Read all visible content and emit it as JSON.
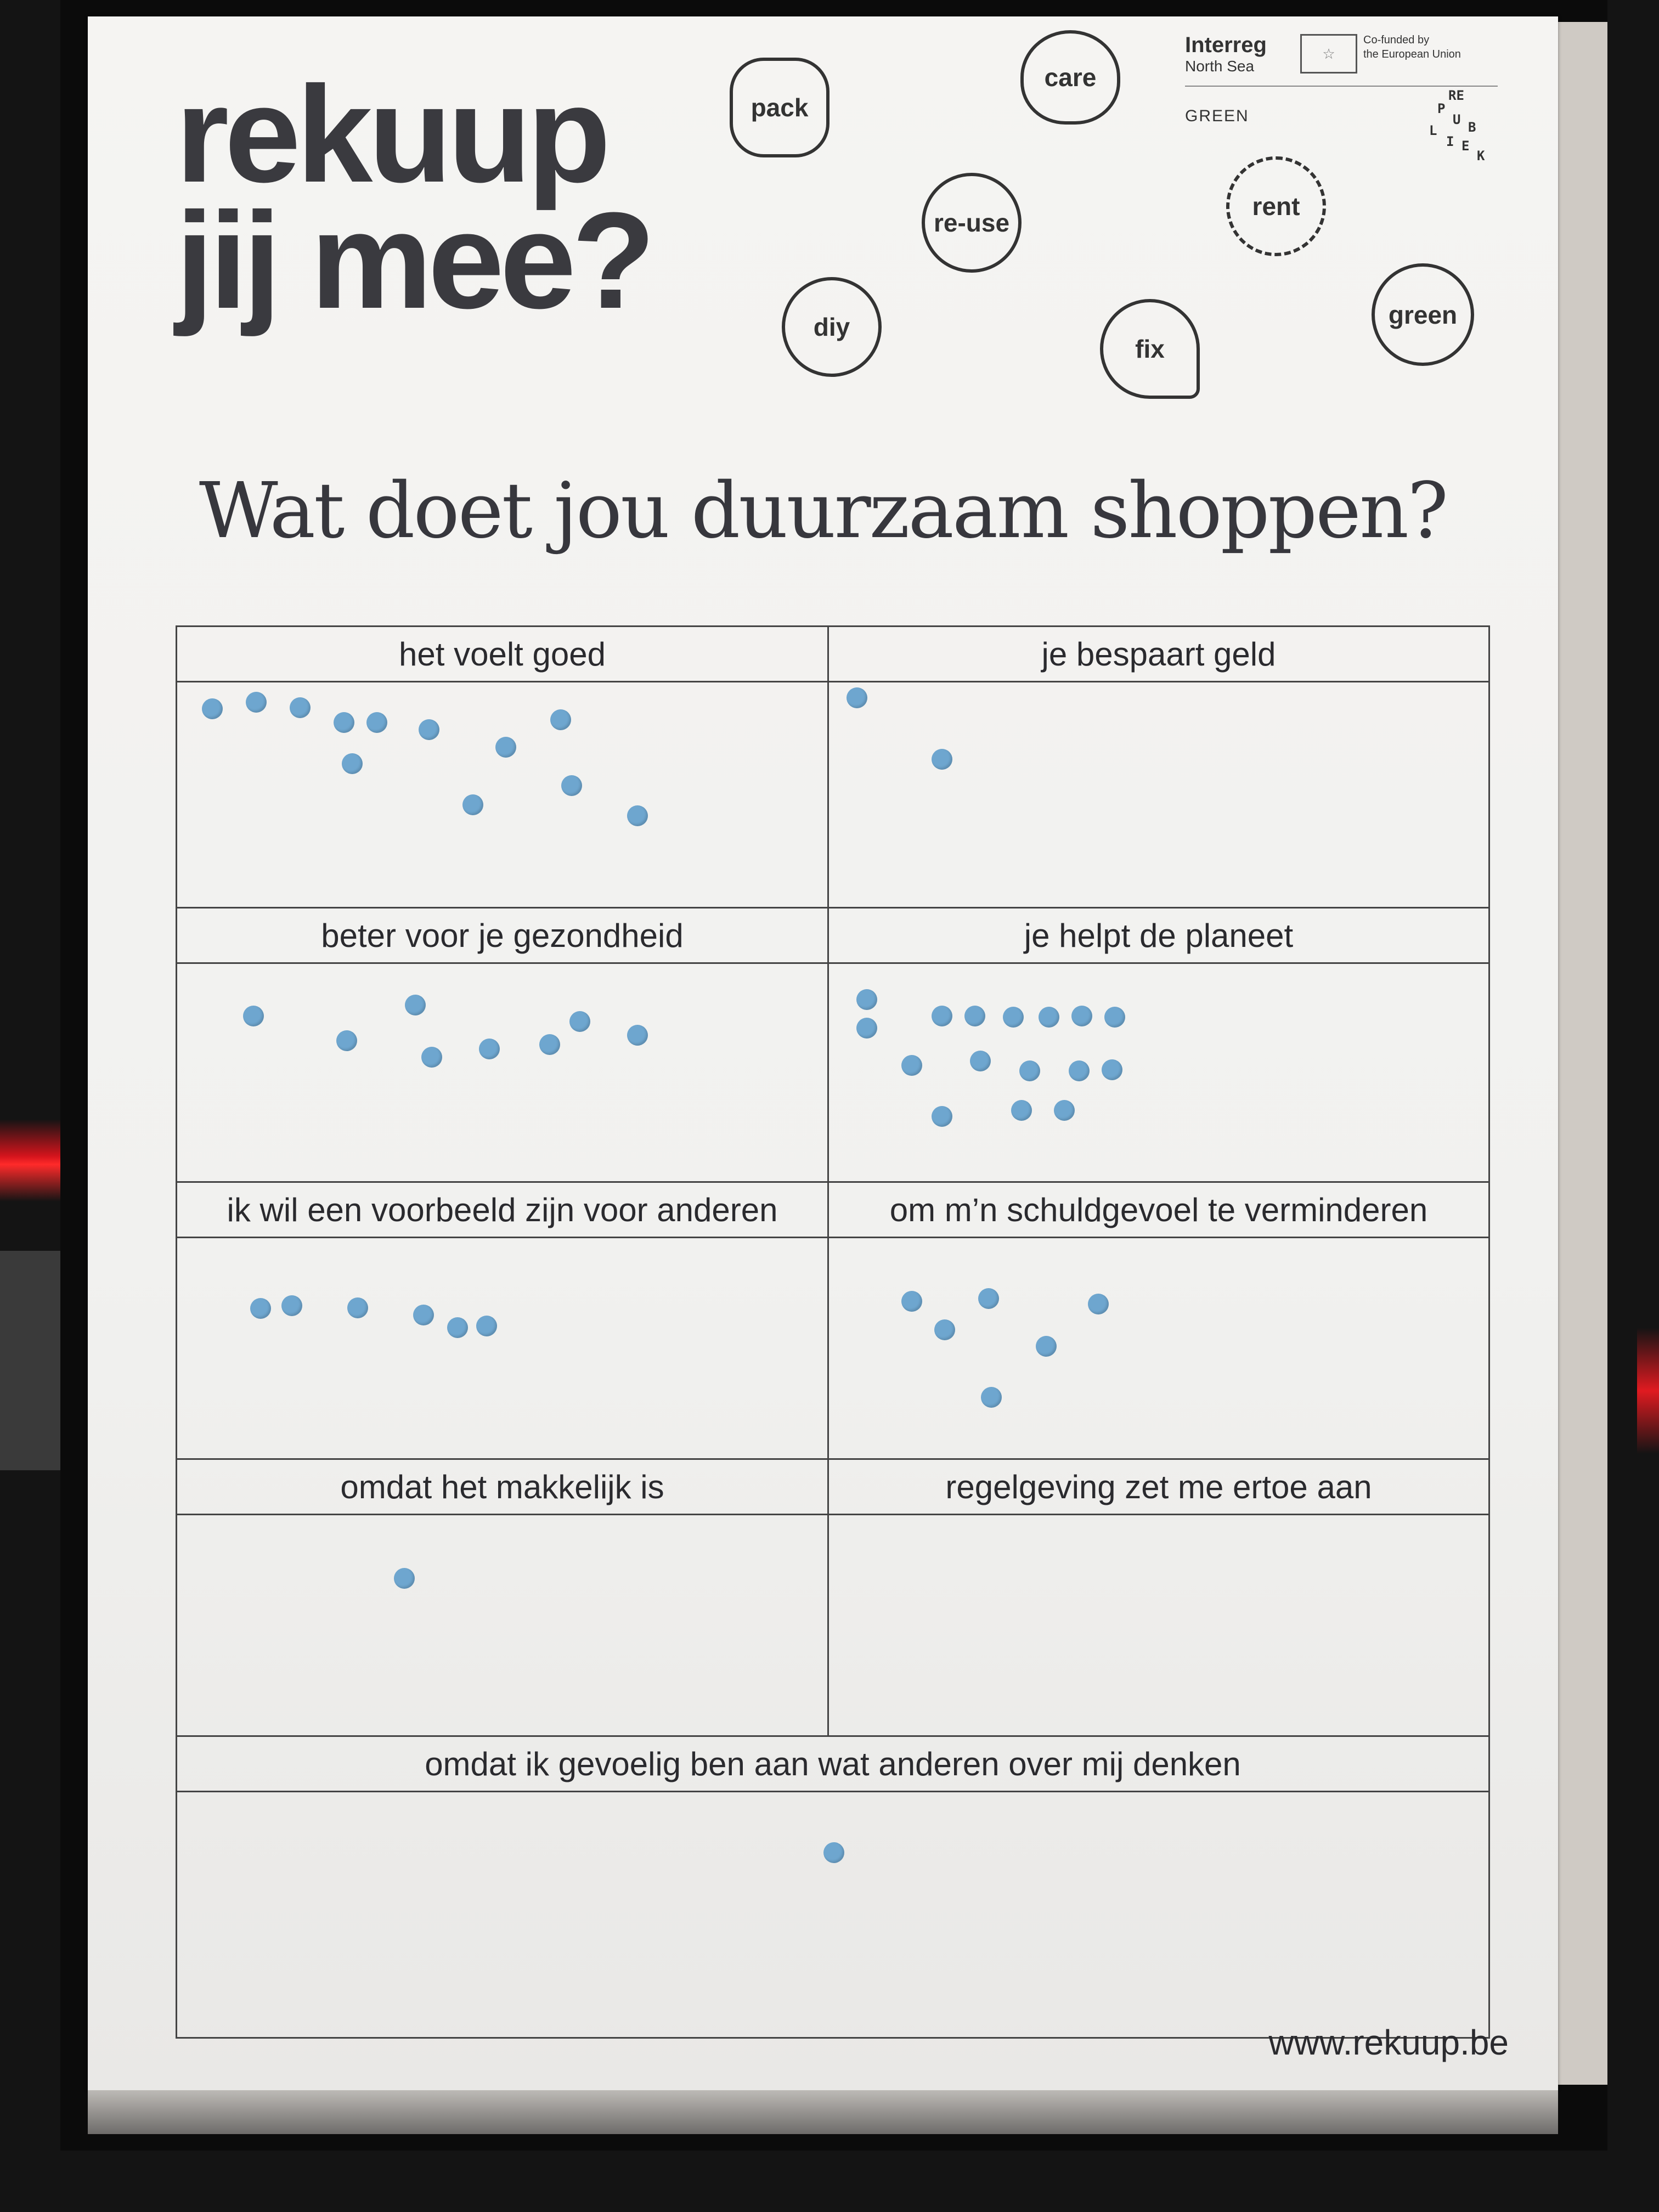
{
  "poster": {
    "logo_line1": "rekuup",
    "logo_line2": "jij mee?",
    "tags": [
      "pack",
      "care",
      "re-use",
      "rent",
      "diy",
      "fix",
      "green"
    ],
    "interreg_title": "Interreg",
    "interreg_sub": "North Sea",
    "eu_text_1": "Co-funded by",
    "eu_text_2": "the European Union",
    "green_label": "GREEN",
    "republiek_letters": [
      "RE",
      "P",
      "U",
      "B",
      "L",
      "I",
      "E",
      "K"
    ],
    "question": "Wat doet jou duurzaam shoppen?",
    "cells": [
      {
        "label": "het voelt goed",
        "dot_count": 12
      },
      {
        "label": "je bespaart geld",
        "dot_count": 2
      },
      {
        "label": "beter voor je gezondheid",
        "dot_count": 9
      },
      {
        "label": "je helpt de planeet",
        "dot_count": 17
      },
      {
        "label": "ik wil een voorbeeld zijn voor anderen",
        "dot_count": 6
      },
      {
        "label": "om m’n schuldgevoel te verminderen",
        "dot_count": 6
      },
      {
        "label": "omdat het makkelijk is",
        "dot_count": 1
      },
      {
        "label": "regelgeving zet me ertoe aan",
        "dot_count": 0
      },
      {
        "label": "omdat ik gevoelig ben aan wat anderen over mij denken",
        "dot_count": 1
      }
    ],
    "url": "www.rekuup.be",
    "dot_color": "#6ea6cf"
  }
}
